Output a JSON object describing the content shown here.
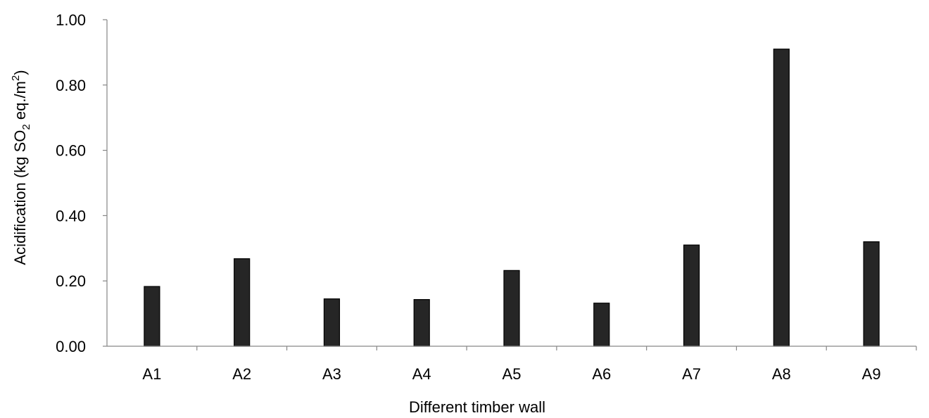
{
  "chart_data": {
    "type": "bar",
    "categories": [
      "A1",
      "A2",
      "A3",
      "A4",
      "A5",
      "A6",
      "A7",
      "A8",
      "A9"
    ],
    "values": [
      0.183,
      0.268,
      0.145,
      0.143,
      0.232,
      0.132,
      0.31,
      0.91,
      0.32
    ],
    "xlabel": "Different timber wall",
    "ylabel": {
      "prefix": "Acidification (kg SO",
      "sub": "2",
      "middle": " eq./m",
      "sup": "2",
      "suffix": ")"
    },
    "ylim": [
      0,
      1.0
    ],
    "yticks": [
      "0.00",
      "0.20",
      "0.40",
      "0.60",
      "0.80",
      "1.00"
    ],
    "grid": false,
    "bar_color": "#262626"
  }
}
